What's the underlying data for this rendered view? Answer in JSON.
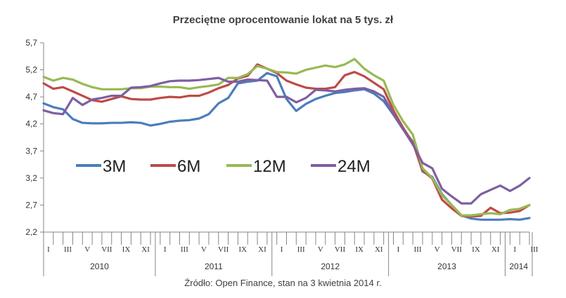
{
  "chart_data": {
    "type": "line",
    "title": "Przeciętne oprocentowanie  lokat na 5 tys. zł",
    "source": "Źródło: Open Finance, stan na 3 kwietnia 2014 r.",
    "xlabel": "",
    "ylabel": "",
    "ylim": [
      2.2,
      5.7
    ],
    "yticks": [
      "2,2",
      "2,7",
      "3,2",
      "3,7",
      "4,2",
      "4,7",
      "5,2",
      "5,7"
    ],
    "grid": false,
    "legend_position": "inside-left",
    "month_tick_labels": [
      "I",
      "III",
      "V",
      "VII",
      "IX",
      "XI"
    ],
    "years": [
      {
        "label": "2010",
        "months": 12
      },
      {
        "label": "2011",
        "months": 12
      },
      {
        "label": "2012",
        "months": 12
      },
      {
        "label": "2013",
        "months": 12
      },
      {
        "label": "2014",
        "months": 3
      }
    ],
    "x": [
      "2010-01",
      "2010-02",
      "2010-03",
      "2010-04",
      "2010-05",
      "2010-06",
      "2010-07",
      "2010-08",
      "2010-09",
      "2010-10",
      "2010-11",
      "2010-12",
      "2011-01",
      "2011-02",
      "2011-03",
      "2011-04",
      "2011-05",
      "2011-06",
      "2011-07",
      "2011-08",
      "2011-09",
      "2011-10",
      "2011-11",
      "2011-12",
      "2012-01",
      "2012-02",
      "2012-03",
      "2012-04",
      "2012-05",
      "2012-06",
      "2012-07",
      "2012-08",
      "2012-09",
      "2012-10",
      "2012-11",
      "2012-12",
      "2013-01",
      "2013-02",
      "2013-03",
      "2013-04",
      "2013-05",
      "2013-06",
      "2013-07",
      "2013-08",
      "2013-09",
      "2013-10",
      "2013-11",
      "2013-12",
      "2014-01",
      "2014-02",
      "2014-03"
    ],
    "series": [
      {
        "name": "3M",
        "color": "#4a7ebb",
        "values": [
          4.58,
          4.51,
          4.47,
          4.29,
          4.22,
          4.21,
          4.21,
          4.22,
          4.22,
          4.23,
          4.22,
          4.17,
          4.2,
          4.24,
          4.26,
          4.27,
          4.3,
          4.38,
          4.58,
          4.68,
          4.95,
          4.98,
          5.0,
          5.14,
          5.08,
          4.66,
          4.44,
          4.57,
          4.66,
          4.72,
          4.77,
          4.79,
          4.82,
          4.84,
          4.76,
          4.62,
          4.37,
          4.1,
          3.87,
          3.32,
          3.22,
          2.9,
          2.7,
          2.51,
          2.45,
          2.43,
          2.43,
          2.43,
          2.44,
          2.43,
          2.46
        ]
      },
      {
        "name": "6M",
        "color": "#be4b48",
        "values": [
          4.95,
          4.85,
          4.88,
          4.8,
          4.72,
          4.64,
          4.61,
          4.66,
          4.71,
          4.66,
          4.65,
          4.65,
          4.68,
          4.7,
          4.69,
          4.72,
          4.72,
          4.78,
          4.86,
          4.92,
          5.04,
          5.09,
          5.3,
          5.22,
          5.14,
          5.0,
          4.93,
          4.87,
          4.85,
          4.85,
          4.88,
          5.1,
          5.16,
          5.08,
          4.96,
          4.84,
          4.45,
          4.13,
          3.85,
          3.34,
          3.19,
          2.8,
          2.64,
          2.5,
          2.49,
          2.5,
          2.65,
          2.55,
          2.56,
          2.59,
          2.7
        ]
      },
      {
        "name": "12M",
        "color": "#98b954",
        "values": [
          5.07,
          5.0,
          5.05,
          5.02,
          4.94,
          4.88,
          4.84,
          4.84,
          4.84,
          4.86,
          4.86,
          4.89,
          4.89,
          4.88,
          4.88,
          4.85,
          4.88,
          4.9,
          4.93,
          5.05,
          5.05,
          5.12,
          5.27,
          5.22,
          5.16,
          5.15,
          5.13,
          5.2,
          5.24,
          5.28,
          5.25,
          5.3,
          5.4,
          5.22,
          5.1,
          5.0,
          4.55,
          4.25,
          4.0,
          3.38,
          3.2,
          2.88,
          2.7,
          2.51,
          2.51,
          2.53,
          2.55,
          2.53,
          2.61,
          2.63,
          2.7
        ]
      },
      {
        "name": "24M",
        "color": "#7d5fa0",
        "values": [
          4.45,
          4.4,
          4.38,
          4.68,
          4.55,
          4.65,
          4.68,
          4.72,
          4.72,
          4.87,
          4.88,
          4.9,
          4.95,
          4.99,
          5.0,
          5.0,
          5.01,
          5.03,
          5.05,
          4.98,
          4.98,
          5.02,
          5.01,
          5.0,
          4.7,
          4.7,
          4.6,
          4.68,
          4.83,
          4.82,
          4.8,
          4.83,
          4.85,
          4.86,
          4.8,
          4.7,
          4.38,
          4.1,
          3.82,
          3.48,
          3.38,
          3.0,
          2.86,
          2.73,
          2.73,
          2.9,
          2.98,
          3.06,
          2.96,
          3.06,
          3.2
        ]
      }
    ]
  }
}
